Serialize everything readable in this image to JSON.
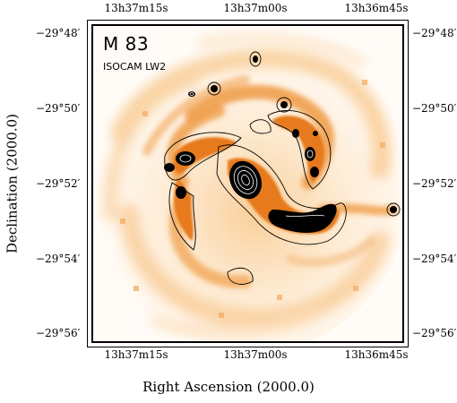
{
  "image": {
    "object_name": "M 83",
    "instrument": "ISOCAM LW2"
  },
  "axes": {
    "x_title": "Right Ascension (2000.0)",
    "y_title": "Declination (2000.0)",
    "ra_ticks_top": [
      "13h37m15s",
      "13h37m00s",
      "13h36m45s"
    ],
    "ra_ticks_bottom": [
      "13h37m15s",
      "13h37m00s",
      "13h36m45s"
    ],
    "dec_ticks_left": [
      "−29°48′",
      "−29°50′",
      "−29°52′",
      "−29°54′",
      "−29°56′"
    ],
    "dec_ticks_right": [
      "−29°48′",
      "−29°50′",
      "−29°52′",
      "−29°54′",
      "−29°56′"
    ]
  },
  "colors": {
    "background": "#ffffff",
    "faint_emission": "#fde6c8",
    "mid_emission": "#f6b868",
    "bright_emission": "#e8801f",
    "peak_emission": "#000000",
    "contour_light": "#ffffff",
    "contour_dark": "#000000"
  }
}
